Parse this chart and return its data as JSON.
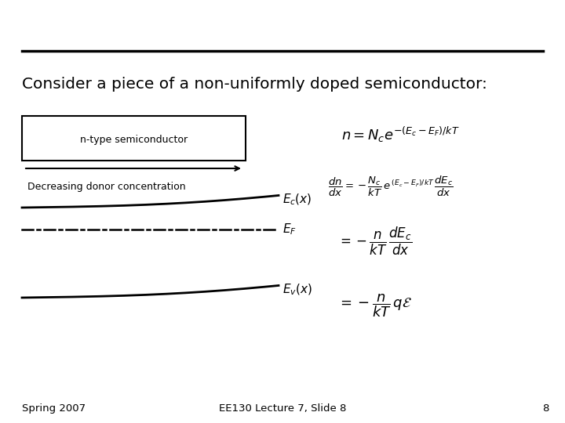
{
  "bg_color": "#ffffff",
  "title": "Consider a piece of a non-uniformly doped semiconductor:",
  "title_fontsize": 14.5,
  "footer_left": "Spring 2007",
  "footer_center": "EE130 Lecture 7, Slide 8",
  "footer_slide": "8",
  "footer_fontsize": 9.5
}
